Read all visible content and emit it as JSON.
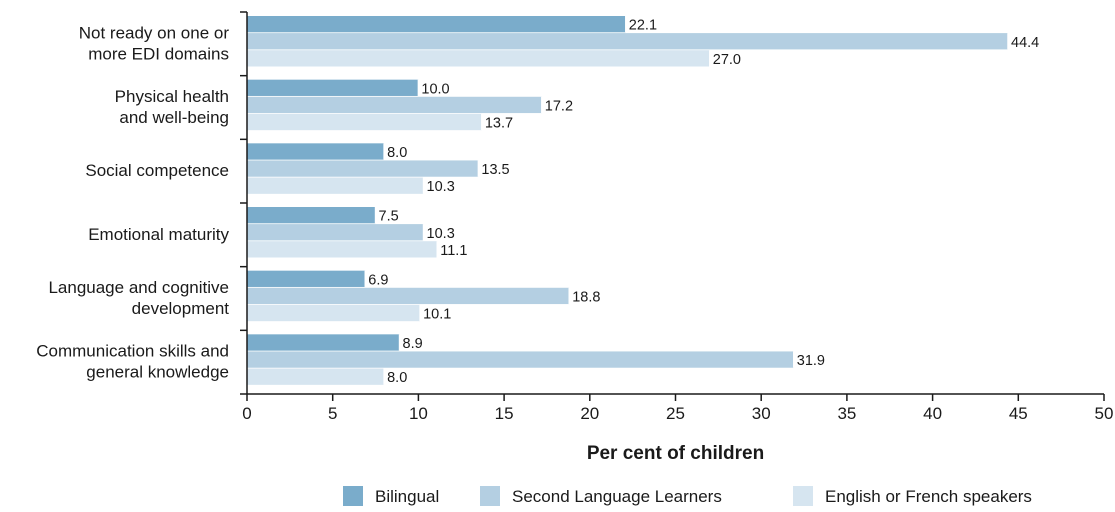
{
  "chart_data": {
    "type": "bar",
    "orientation": "horizontal",
    "categories": [
      [
        "Not ready on one or",
        "more EDI domains"
      ],
      [
        "Physical health",
        "and well-being"
      ],
      [
        "Social competence"
      ],
      [
        "Emotional maturity"
      ],
      [
        "Language and cognitive",
        "development"
      ],
      [
        "Communication skills and",
        "general knowledge"
      ]
    ],
    "series": [
      {
        "name": "Bilingual",
        "color": "#7aaccb",
        "values": [
          22.1,
          10.0,
          8.0,
          7.5,
          6.9,
          8.9
        ],
        "labels": [
          "22.1",
          "10.0",
          "8.0",
          "7.5",
          "6.9",
          "8.9"
        ]
      },
      {
        "name": "Second Language Learners",
        "color": "#b4cfe2",
        "values": [
          44.4,
          17.2,
          13.5,
          10.3,
          18.8,
          31.9
        ],
        "labels": [
          "44.4",
          "17.2",
          "13.5",
          "10.3",
          "18.8",
          "31.9"
        ]
      },
      {
        "name": "English or French speakers",
        "color": "#d6e5f0",
        "values": [
          27.0,
          13.7,
          10.3,
          11.1,
          10.1,
          8.0
        ],
        "labels": [
          "27.0",
          "13.7",
          "10.3",
          "11.1",
          "10.1",
          "8.0"
        ]
      }
    ],
    "xlabel": "Per cent of children",
    "xlim": [
      0,
      50
    ],
    "xticks": [
      0,
      5,
      10,
      15,
      20,
      25,
      30,
      35,
      40,
      45,
      50
    ],
    "grid": false,
    "legend": "bottom"
  }
}
